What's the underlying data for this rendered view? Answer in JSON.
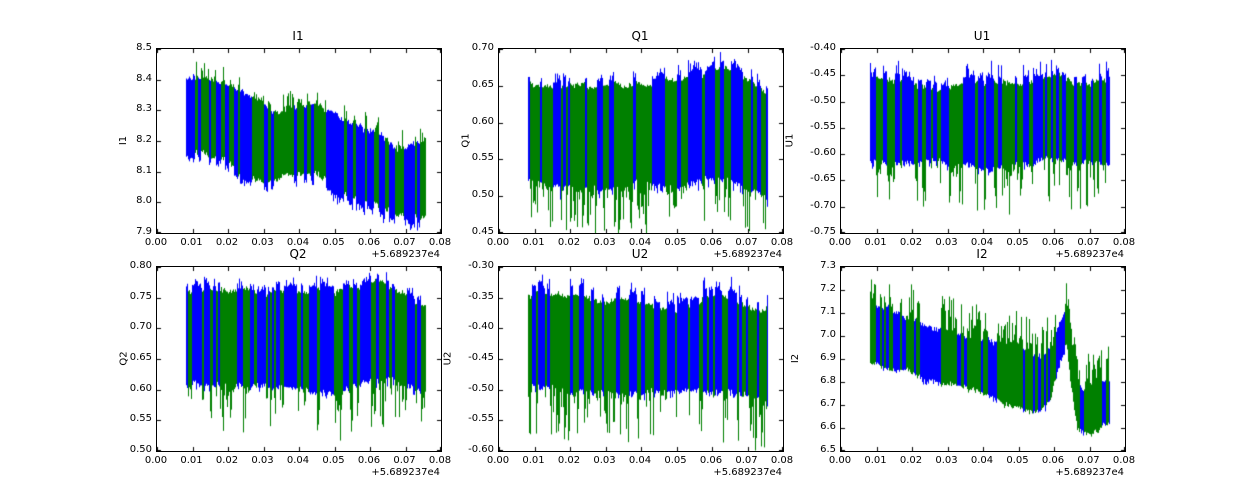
{
  "chart_data": {
    "type": "line",
    "title": "",
    "background": "#ffffff",
    "grid": false,
    "legend": null,
    "series": [
      {
        "name": "series-blue",
        "color": "#0000ff"
      },
      {
        "name": "series-green",
        "color": "#008000"
      }
    ],
    "xlim": [
      0,
      0.08
    ],
    "xticks": [
      "0.00",
      "0.01",
      "0.02",
      "0.03",
      "0.04",
      "0.05",
      "0.06",
      "0.07",
      "0.08"
    ],
    "xtick_values": [
      0,
      0.01,
      0.02,
      0.03,
      0.04,
      0.05,
      0.06,
      0.07,
      0.08
    ],
    "x_offset_label": "+5.689237e4",
    "panels": [
      {
        "title": "I1",
        "ylabel": "I1",
        "ylim": [
          7.9,
          8.5
        ],
        "yticks": [
          "8.5",
          "8.4",
          "8.3",
          "8.2",
          "8.1",
          "8.0",
          "7.9"
        ],
        "ytick_values": [
          8.5,
          8.4,
          8.3,
          8.2,
          8.1,
          8.0,
          7.9
        ],
        "x_offset_label": "+5.689237e4",
        "data_x_range": [
          0.008,
          0.0755
        ],
        "band": {
          "x": [
            0.008,
            0.013,
            0.02,
            0.028,
            0.035,
            0.043,
            0.048,
            0.055,
            0.062,
            0.068,
            0.0755
          ],
          "top": [
            8.4,
            8.41,
            8.37,
            8.33,
            8.29,
            8.32,
            8.3,
            8.25,
            8.22,
            8.18,
            8.21
          ],
          "bottom": [
            8.15,
            8.14,
            8.1,
            8.04,
            8.06,
            8.08,
            8.05,
            8.01,
            7.98,
            7.95,
            7.93
          ]
        },
        "green": {
          "top_offset": -0.005,
          "bottom_offset": -0.02,
          "spike_dir": 1,
          "spike_max": 0.055,
          "spike_pow": 3
        },
        "blue": {
          "top_max": 0.01,
          "bottom_max": 0.025
        },
        "seed": 11
      },
      {
        "title": "Q1",
        "ylabel": "Q1",
        "ylim": [
          0.45,
          0.7
        ],
        "yticks": [
          "0.70",
          "0.65",
          "0.60",
          "0.55",
          "0.50",
          "0.45"
        ],
        "ytick_values": [
          0.7,
          0.65,
          0.6,
          0.55,
          0.5,
          0.45
        ],
        "x_offset_label": "+5.689237e4",
        "data_x_range": [
          0.008,
          0.0755
        ],
        "band": {
          "x": [
            0.008,
            0.02,
            0.03,
            0.04,
            0.05,
            0.058,
            0.064,
            0.07,
            0.0755
          ],
          "top": [
            0.662,
            0.66,
            0.663,
            0.665,
            0.66,
            0.67,
            0.678,
            0.66,
            0.648
          ],
          "bottom": [
            0.522,
            0.518,
            0.515,
            0.52,
            0.518,
            0.524,
            0.53,
            0.515,
            0.505
          ]
        },
        "green": {
          "top_offset": 0.008,
          "bottom_offset": 0.0,
          "spike_dir": -1,
          "spike_max": 0.068,
          "spike_pow": 2
        },
        "blue": {
          "top_max": 0.012,
          "bottom_max": 0.015
        },
        "seed": 22
      },
      {
        "title": "U1",
        "ylabel": "U1",
        "ylim": [
          -0.75,
          -0.4
        ],
        "yticks": [
          "-0.40",
          "-0.45",
          "-0.50",
          "-0.55",
          "-0.60",
          "-0.65",
          "-0.70",
          "-0.75"
        ],
        "ytick_values": [
          -0.4,
          -0.45,
          -0.5,
          -0.55,
          -0.6,
          -0.65,
          -0.7,
          -0.75
        ],
        "x_offset_label": "+5.689237e4",
        "data_x_range": [
          0.008,
          0.0755
        ],
        "band": {
          "x": [
            0.008,
            0.02,
            0.03,
            0.04,
            0.05,
            0.06,
            0.068,
            0.0755
          ],
          "top": [
            -0.452,
            -0.456,
            -0.46,
            -0.463,
            -0.46,
            -0.448,
            -0.452,
            -0.456
          ],
          "bottom": [
            -0.618,
            -0.614,
            -0.62,
            -0.625,
            -0.622,
            -0.615,
            -0.618,
            -0.624
          ]
        },
        "green": {
          "top_offset": 0.01,
          "bottom_offset": 0.0,
          "spike_dir": -1,
          "spike_max": 0.088,
          "spike_pow": 2
        },
        "blue": {
          "top_max": 0.028,
          "bottom_max": 0.01
        },
        "seed": 33
      },
      {
        "title": "Q2",
        "ylabel": "Q2",
        "ylim": [
          0.5,
          0.8
        ],
        "yticks": [
          "0.80",
          "0.75",
          "0.70",
          "0.65",
          "0.60",
          "0.55",
          "0.50"
        ],
        "ytick_values": [
          0.8,
          0.75,
          0.7,
          0.65,
          0.6,
          0.55,
          0.5
        ],
        "x_offset_label": "+5.689237e4",
        "data_x_range": [
          0.008,
          0.0755
        ],
        "band": {
          "x": [
            0.008,
            0.02,
            0.03,
            0.04,
            0.05,
            0.058,
            0.064,
            0.07,
            0.0755
          ],
          "top": [
            0.765,
            0.768,
            0.762,
            0.768,
            0.762,
            0.775,
            0.788,
            0.765,
            0.748
          ],
          "bottom": [
            0.608,
            0.603,
            0.6,
            0.604,
            0.6,
            0.608,
            0.615,
            0.6,
            0.592
          ]
        },
        "green": {
          "top_offset": 0.008,
          "bottom_offset": 0.0,
          "spike_dir": -1,
          "spike_max": 0.082,
          "spike_pow": 2
        },
        "blue": {
          "top_max": 0.015,
          "bottom_max": 0.012
        },
        "seed": 44
      },
      {
        "title": "U2",
        "ylabel": "U2",
        "ylim": [
          -0.6,
          -0.3
        ],
        "yticks": [
          "-0.30",
          "-0.35",
          "-0.40",
          "-0.45",
          "-0.50",
          "-0.55",
          "-0.60"
        ],
        "ytick_values": [
          -0.3,
          -0.35,
          -0.4,
          -0.45,
          -0.5,
          -0.55,
          -0.6
        ],
        "x_offset_label": "+5.689237e4",
        "data_x_range": [
          0.008,
          0.0755
        ],
        "band": {
          "x": [
            0.008,
            0.02,
            0.03,
            0.04,
            0.05,
            0.058,
            0.064,
            0.07,
            0.0755
          ],
          "top": [
            -0.33,
            -0.336,
            -0.342,
            -0.35,
            -0.353,
            -0.338,
            -0.33,
            -0.345,
            -0.355
          ],
          "bottom": [
            -0.496,
            -0.498,
            -0.5,
            -0.506,
            -0.51,
            -0.5,
            -0.496,
            -0.505,
            -0.51
          ]
        },
        "green": {
          "top_offset": 0.012,
          "bottom_offset": 0.0,
          "spike_dir": -1,
          "spike_max": 0.088,
          "spike_pow": 1.8
        },
        "blue": {
          "top_max": 0.02,
          "bottom_max": 0.012
        },
        "seed": 55
      },
      {
        "title": "I2",
        "ylabel": "I2",
        "ylim": [
          6.5,
          7.3
        ],
        "yticks": [
          "7.3",
          "7.2",
          "7.1",
          "7.0",
          "6.9",
          "6.8",
          "6.7",
          "6.6",
          "6.5"
        ],
        "ytick_values": [
          7.3,
          7.2,
          7.1,
          7.0,
          6.9,
          6.8,
          6.7,
          6.6,
          6.5
        ],
        "x_offset_label": "+5.689237e4",
        "data_x_range": [
          0.008,
          0.0755
        ],
        "band": {
          "x": [
            0.008,
            0.015,
            0.022,
            0.03,
            0.04,
            0.05,
            0.056,
            0.059,
            0.0615,
            0.0635,
            0.065,
            0.0665,
            0.068,
            0.071,
            0.0755
          ],
          "top": [
            7.14,
            7.1,
            7.07,
            7.03,
            7.0,
            6.95,
            6.91,
            6.95,
            7.05,
            7.14,
            7.0,
            6.82,
            6.76,
            6.79,
            6.83
          ],
          "bottom": [
            6.88,
            6.85,
            6.82,
            6.78,
            6.74,
            6.7,
            6.67,
            6.72,
            6.85,
            6.96,
            6.75,
            6.6,
            6.57,
            6.58,
            6.6
          ]
        },
        "green": {
          "top_offset": -0.005,
          "bottom_offset": 0.005,
          "spike_dir": 1,
          "spike_max": 0.15,
          "spike_pow": 1.3
        },
        "blue": {
          "top_max": 0.01,
          "bottom_max": 0.02
        },
        "seed": 66
      }
    ]
  }
}
